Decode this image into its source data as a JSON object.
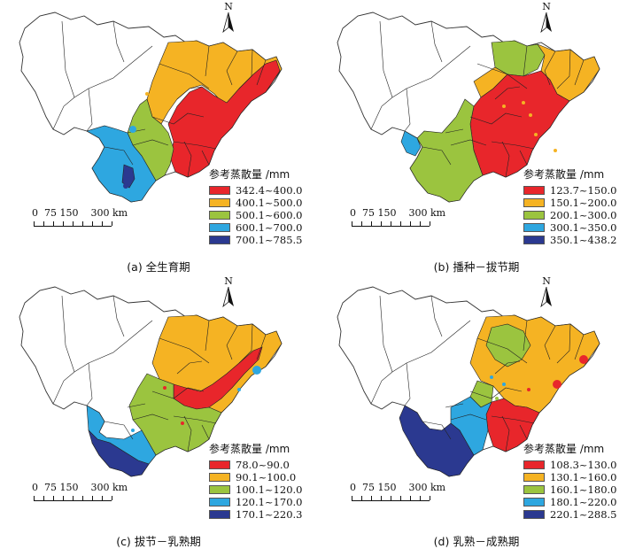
{
  "panels": [
    {
      "caption": "(a)  全生育期",
      "legend_title": "参考蒸散量 /mm",
      "classes": [
        {
          "label": "342.4~400.0",
          "color": "#e8262b"
        },
        {
          "label": "400.1~500.0",
          "color": "#f5b323"
        },
        {
          "label": "500.1~600.0",
          "color": "#9bc43f"
        },
        {
          "label": "600.1~700.0",
          "color": "#2ea7e0"
        },
        {
          "label": "700.1~785.5",
          "color": "#2b3990"
        }
      ]
    },
    {
      "caption": "(b)  播种－拔节期",
      "legend_title": "参考蒸散量 /mm",
      "classes": [
        {
          "label": "123.7~150.0",
          "color": "#e8262b"
        },
        {
          "label": "150.1~200.0",
          "color": "#f5b323"
        },
        {
          "label": "200.1~300.0",
          "color": "#9bc43f"
        },
        {
          "label": "300.1~350.0",
          "color": "#2ea7e0"
        },
        {
          "label": "350.1~438.2",
          "color": "#2b3990"
        }
      ]
    },
    {
      "caption": "(c)  拔节－乳熟期",
      "legend_title": "参考蒸散量 /mm",
      "classes": [
        {
          "label": "78.0~90.0",
          "color": "#e8262b"
        },
        {
          "label": "90.1~100.0",
          "color": "#f5b323"
        },
        {
          "label": "100.1~120.0",
          "color": "#9bc43f"
        },
        {
          "label": "120.1~170.0",
          "color": "#2ea7e0"
        },
        {
          "label": "170.1~220.3",
          "color": "#2b3990"
        }
      ]
    },
    {
      "caption": "(d)  乳熟－成熟期",
      "legend_title": "参考蒸散量 /mm",
      "classes": [
        {
          "label": "108.3~130.0",
          "color": "#e8262b"
        },
        {
          "label": "130.1~160.0",
          "color": "#f5b323"
        },
        {
          "label": "160.1~180.0",
          "color": "#9bc43f"
        },
        {
          "label": "180.1~220.0",
          "color": "#2ea7e0"
        },
        {
          "label": "220.1~288.5",
          "color": "#2b3990"
        }
      ]
    }
  ],
  "north_label": "N",
  "scale": {
    "ticks": "0  75 150    300 km"
  },
  "icons": {
    "north": "north-arrow-icon"
  }
}
